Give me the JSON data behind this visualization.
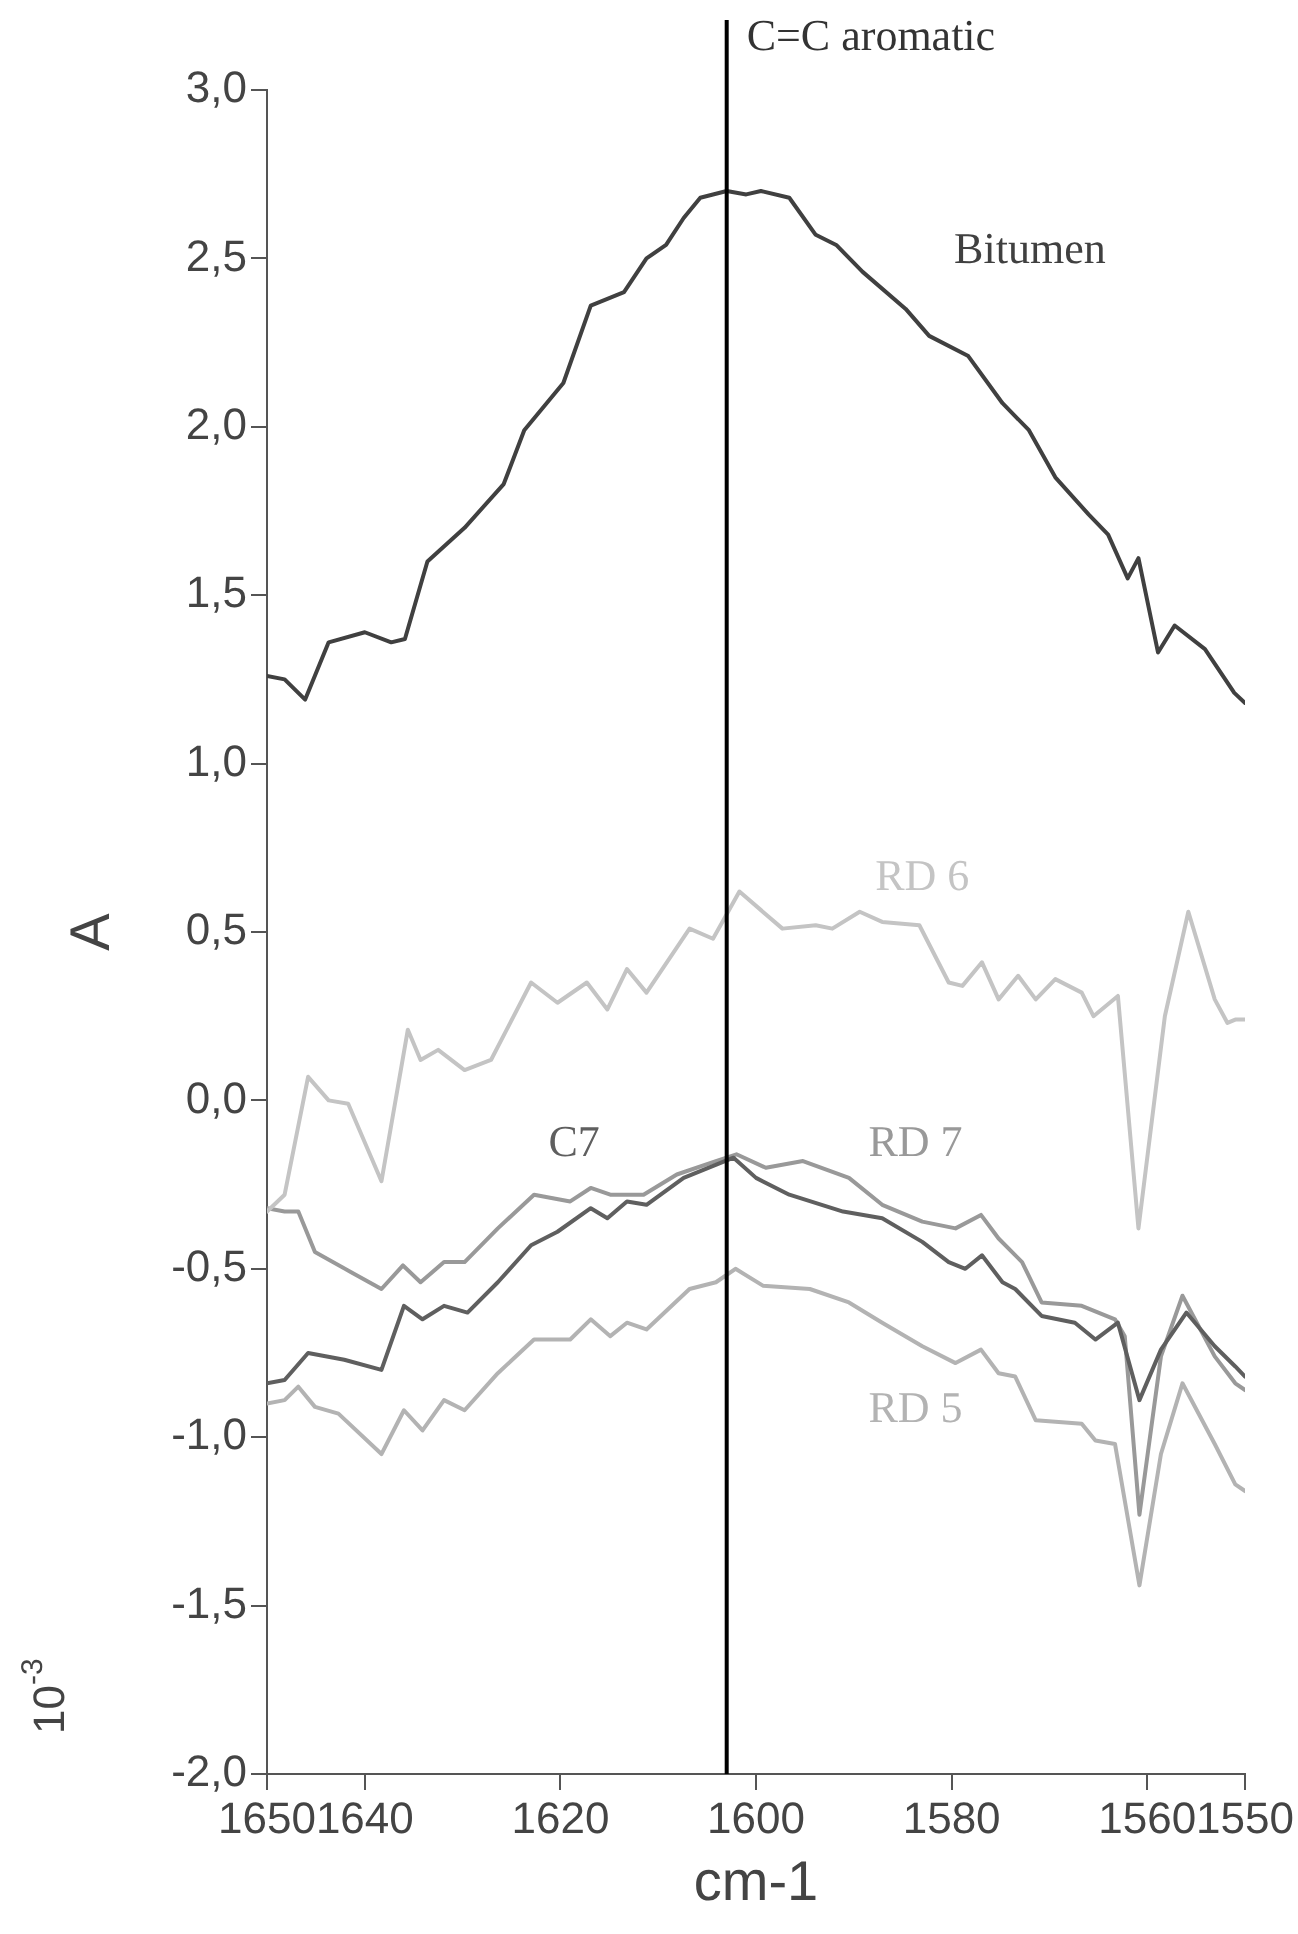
{
  "chart_data": {
    "type": "line",
    "xlabel": "cm-1",
    "ylabel": "A",
    "annotations": [
      "10$^{-3}$"
    ],
    "xlim": [
      1650,
      1550
    ],
    "xticks": [
      1650,
      1640,
      1620,
      1600,
      1580,
      1560,
      1550
    ],
    "ylim": [
      -2,
      3
    ],
    "yticks": [
      {
        "value": -2,
        "label": "-2,0"
      },
      {
        "value": -1.5,
        "label": "-1,5"
      },
      {
        "value": -1,
        "label": "-1,0"
      },
      {
        "value": -0.5,
        "label": "-0,5"
      },
      {
        "value": 0,
        "label": "0,0"
      },
      {
        "value": 0.5,
        "label": "0,5"
      },
      {
        "value": 1,
        "label": "1,0"
      },
      {
        "value": 1.5,
        "label": "1,5"
      },
      {
        "value": 2,
        "label": "2,0"
      },
      {
        "value": 2.5,
        "label": "2,5"
      },
      {
        "value": 3,
        "label": "3,0"
      }
    ],
    "grid": false,
    "legend": false,
    "marker": "none",
    "line_style": "solid",
    "ref_lines": [
      {
        "axis": "x",
        "value": 1603,
        "label": "C=C aromatic",
        "color": "#000000"
      }
    ],
    "series": [
      {
        "name": "Bitumen",
        "color": "#404040",
        "x": [
          1650,
          1648.2,
          1646.1,
          1643.7,
          1640,
          1637.3,
          1635.9,
          1633.6,
          1629.8,
          1625.8,
          1623.7,
          1619.7,
          1616.9,
          1613.5,
          1611.2,
          1609.2,
          1607.4,
          1605.7,
          1603,
          1601,
          1599.5,
          1596.6,
          1593.9,
          1591.8,
          1589.1,
          1584.7,
          1582.3,
          1578.3,
          1574.8,
          1572.1,
          1569.4,
          1566,
          1564,
          1562,
          1560.9,
          1558.9,
          1557.2,
          1554.1,
          1551.1,
          1550
        ],
        "values": [
          1.26,
          1.25,
          1.19,
          1.36,
          1.39,
          1.36,
          1.37,
          1.6,
          1.7,
          1.83,
          1.99,
          2.13,
          2.36,
          2.4,
          2.5,
          2.54,
          2.62,
          2.68,
          2.7,
          2.69,
          2.7,
          2.68,
          2.57,
          2.54,
          2.46,
          2.35,
          2.27,
          2.21,
          2.07,
          1.99,
          1.85,
          1.74,
          1.68,
          1.55,
          1.61,
          1.33,
          1.41,
          1.34,
          1.21,
          1.18
        ]
      },
      {
        "name": "RD 6",
        "color": "#c4c4c4",
        "x": [
          1650,
          1648.2,
          1645.8,
          1643.7,
          1641.7,
          1638.3,
          1635.6,
          1634.3,
          1632.5,
          1629.8,
          1627.1,
          1623,
          1620.3,
          1617.3,
          1615.2,
          1613.2,
          1611.2,
          1606.8,
          1604.4,
          1601.7,
          1597.3,
          1593.9,
          1592.2,
          1589.4,
          1587.1,
          1583.3,
          1580.3,
          1578.9,
          1576.9,
          1575.2,
          1573.2,
          1571.4,
          1569.4,
          1566.7,
          1565.5,
          1563,
          1560.9,
          1558.2,
          1555.8,
          1553.1,
          1551.8,
          1551,
          1550
        ],
        "values": [
          -0.33,
          -0.28,
          0.07,
          0,
          -0.01,
          -0.24,
          0.21,
          0.12,
          0.15,
          0.09,
          0.12,
          0.35,
          0.29,
          0.35,
          0.27,
          0.39,
          0.32,
          0.51,
          0.48,
          0.62,
          0.51,
          0.52,
          0.51,
          0.56,
          0.53,
          0.52,
          0.35,
          0.34,
          0.41,
          0.3,
          0.37,
          0.3,
          0.36,
          0.32,
          0.25,
          0.31,
          -0.38,
          0.25,
          0.56,
          0.3,
          0.23,
          0.24,
          0.24
        ]
      },
      {
        "name": "C7",
        "color": "#5f5f5f",
        "x": [
          1650,
          1648.2,
          1645.8,
          1642.1,
          1638.3,
          1636,
          1634.1,
          1631.9,
          1629.5,
          1626.4,
          1623,
          1620.3,
          1616.9,
          1615.2,
          1613.2,
          1611.2,
          1607.4,
          1604,
          1602.3,
          1600,
          1596.6,
          1591.1,
          1587.1,
          1583,
          1580.3,
          1578.6,
          1576.9,
          1574.8,
          1573.5,
          1570.8,
          1567.4,
          1565.3,
          1563,
          1560.8,
          1558.6,
          1556,
          1553.1,
          1551,
          1550
        ],
        "values": [
          -0.84,
          -0.83,
          -0.75,
          -0.77,
          -0.8,
          -0.61,
          -0.65,
          -0.61,
          -0.63,
          -0.54,
          -0.43,
          -0.39,
          -0.32,
          -0.35,
          -0.3,
          -0.31,
          -0.23,
          -0.19,
          -0.17,
          -0.23,
          -0.28,
          -0.33,
          -0.35,
          -0.42,
          -0.48,
          -0.5,
          -0.46,
          -0.54,
          -0.56,
          -0.64,
          -0.66,
          -0.71,
          -0.66,
          -0.89,
          -0.74,
          -0.63,
          -0.73,
          -0.79,
          -0.82
        ]
      },
      {
        "name": "RD 7",
        "color": "#999999",
        "x": [
          1650,
          1648.2,
          1646.8,
          1645.1,
          1641.4,
          1638.3,
          1636.1,
          1634.3,
          1631.9,
          1629.8,
          1626.4,
          1622.7,
          1619,
          1616.9,
          1614.9,
          1611.5,
          1608.1,
          1604.1,
          1602,
          1599,
          1595.2,
          1590.5,
          1587.1,
          1583,
          1579.6,
          1577,
          1575.2,
          1572.8,
          1570.8,
          1566.7,
          1563.3,
          1562.3,
          1560.8,
          1558.6,
          1556.4,
          1553.1,
          1551,
          1550
        ],
        "values": [
          -0.32,
          -0.33,
          -0.33,
          -0.45,
          -0.51,
          -0.56,
          -0.49,
          -0.54,
          -0.48,
          -0.48,
          -0.38,
          -0.28,
          -0.3,
          -0.26,
          -0.28,
          -0.28,
          -0.22,
          -0.18,
          -0.16,
          -0.2,
          -0.18,
          -0.23,
          -0.31,
          -0.36,
          -0.38,
          -0.34,
          -0.41,
          -0.48,
          -0.6,
          -0.61,
          -0.65,
          -0.7,
          -1.23,
          -0.76,
          -0.58,
          -0.76,
          -0.84,
          -0.86
        ]
      },
      {
        "name": "RD 5",
        "color": "#b3b3b3",
        "x": [
          1650,
          1648.2,
          1646.8,
          1645.1,
          1642.7,
          1638.3,
          1636,
          1634.1,
          1631.9,
          1629.8,
          1626.4,
          1622.7,
          1619,
          1616.9,
          1614.9,
          1613.2,
          1611.2,
          1606.8,
          1604.1,
          1602.1,
          1599.3,
          1594.5,
          1590.5,
          1587.1,
          1583,
          1579.6,
          1577,
          1575.2,
          1573.5,
          1571.4,
          1566.7,
          1565.3,
          1563.3,
          1560.8,
          1558.6,
          1556.4,
          1553.1,
          1551,
          1550
        ],
        "values": [
          -0.9,
          -0.89,
          -0.85,
          -0.91,
          -0.93,
          -1.05,
          -0.92,
          -0.98,
          -0.89,
          -0.92,
          -0.81,
          -0.71,
          -0.71,
          -0.65,
          -0.7,
          -0.66,
          -0.68,
          -0.56,
          -0.54,
          -0.5,
          -0.55,
          -0.56,
          -0.6,
          -0.66,
          -0.73,
          -0.78,
          -0.74,
          -0.81,
          -0.82,
          -0.95,
          -0.96,
          -1.01,
          -1.02,
          -1.44,
          -1.05,
          -0.84,
          -1.02,
          -1.14,
          -1.16
        ]
      }
    ]
  }
}
